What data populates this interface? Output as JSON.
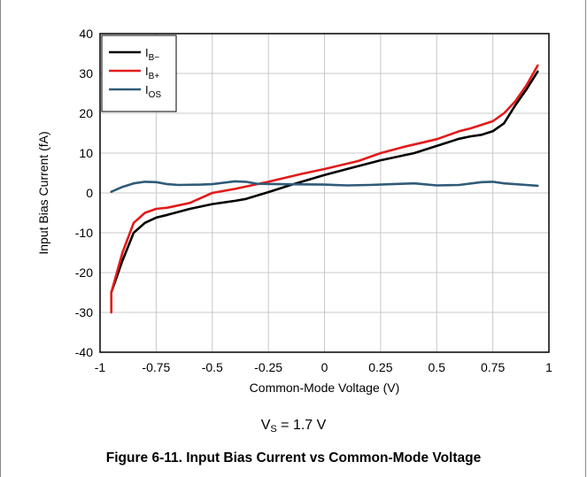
{
  "chart_data": {
    "type": "line",
    "xlabel": "Common-Mode Voltage (V)",
    "ylabel": "Input Bias Current (fA)",
    "xlim": [
      -1,
      1
    ],
    "ylim": [
      -40,
      40
    ],
    "x_ticks": [
      "-1",
      "-0.75",
      "-0.5",
      "-0.25",
      "0",
      "0.25",
      "0.5",
      "0.75",
      "1"
    ],
    "y_ticks": [
      "40",
      "30",
      "20",
      "10",
      "0",
      "-10",
      "-20",
      "-30",
      "-40"
    ],
    "grid": true,
    "legend_position": "top-left",
    "series": [
      {
        "name": "I",
        "subscript": "B−",
        "color": "#000000",
        "points": [
          [
            -0.95,
            -25
          ],
          [
            -0.9,
            -17
          ],
          [
            -0.85,
            -10
          ],
          [
            -0.8,
            -7.5
          ],
          [
            -0.75,
            -6.2
          ],
          [
            -0.7,
            -5.5
          ],
          [
            -0.6,
            -4
          ],
          [
            -0.5,
            -2.8
          ],
          [
            -0.4,
            -2
          ],
          [
            -0.35,
            -1.5
          ],
          [
            -0.25,
            0.2
          ],
          [
            -0.15,
            2
          ],
          [
            0,
            4.5
          ],
          [
            0.1,
            6
          ],
          [
            0.25,
            8.2
          ],
          [
            0.4,
            10
          ],
          [
            0.5,
            11.8
          ],
          [
            0.6,
            13.6
          ],
          [
            0.65,
            14.2
          ],
          [
            0.7,
            14.6
          ],
          [
            0.75,
            15.5
          ],
          [
            0.8,
            17.5
          ],
          [
            0.85,
            22
          ],
          [
            0.9,
            26
          ],
          [
            0.95,
            30.5
          ]
        ]
      },
      {
        "name": "I",
        "subscript": "B+",
        "color": "#e31b1b",
        "points": [
          [
            -0.95,
            -30
          ],
          [
            -0.95,
            -25
          ],
          [
            -0.9,
            -15
          ],
          [
            -0.85,
            -7.5
          ],
          [
            -0.8,
            -5
          ],
          [
            -0.75,
            -4
          ],
          [
            -0.7,
            -3.7
          ],
          [
            -0.6,
            -2.5
          ],
          [
            -0.5,
            0
          ],
          [
            -0.4,
            1
          ],
          [
            -0.25,
            2.8
          ],
          [
            -0.1,
            4.8
          ],
          [
            0,
            6
          ],
          [
            0.15,
            8
          ],
          [
            0.25,
            10
          ],
          [
            0.35,
            11.5
          ],
          [
            0.5,
            13.5
          ],
          [
            0.6,
            15.5
          ],
          [
            0.65,
            16.2
          ],
          [
            0.75,
            18
          ],
          [
            0.8,
            20
          ],
          [
            0.85,
            23
          ],
          [
            0.9,
            27
          ],
          [
            0.95,
            32
          ]
        ]
      },
      {
        "name": "I",
        "subscript": "OS",
        "color": "#2f5b78",
        "points": [
          [
            -0.95,
            0.3
          ],
          [
            -0.9,
            1.5
          ],
          [
            -0.85,
            2.4
          ],
          [
            -0.8,
            2.8
          ],
          [
            -0.75,
            2.7
          ],
          [
            -0.7,
            2.2
          ],
          [
            -0.65,
            2
          ],
          [
            -0.55,
            2.1
          ],
          [
            -0.5,
            2.2
          ],
          [
            -0.4,
            2.9
          ],
          [
            -0.35,
            2.8
          ],
          [
            -0.3,
            2.3
          ],
          [
            -0.2,
            2.2
          ],
          [
            0,
            2.1
          ],
          [
            0.1,
            1.9
          ],
          [
            0.2,
            2
          ],
          [
            0.3,
            2.2
          ],
          [
            0.4,
            2.4
          ],
          [
            0.5,
            1.9
          ],
          [
            0.6,
            2
          ],
          [
            0.7,
            2.7
          ],
          [
            0.75,
            2.8
          ],
          [
            0.8,
            2.4
          ],
          [
            0.9,
            2
          ],
          [
            0.95,
            1.8
          ]
        ]
      }
    ]
  },
  "condition": {
    "prefix": "V",
    "subscript": "S",
    "suffix": " = 1.7 V"
  },
  "caption": "Figure 6-11. Input Bias Current vs Common-Mode Voltage"
}
